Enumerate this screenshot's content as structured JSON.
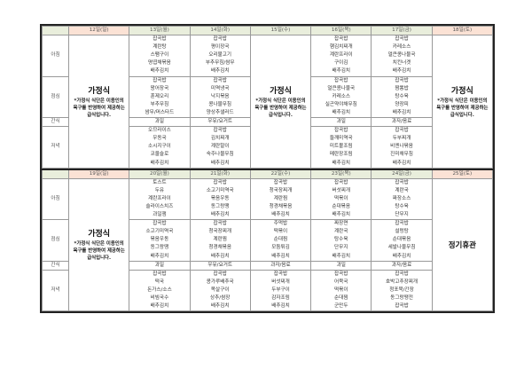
{
  "row_labels": {
    "breakfast": "아침",
    "lunch": "점심",
    "snack": "간식",
    "dinner": "저녁"
  },
  "homestyle": {
    "title": "가정식",
    "note": "*가정식 식단은 이용인의 욕구를 반영하여 제공하는 급식입니다."
  },
  "closed_label": "정기휴관",
  "colors": {
    "weekday_header": "#e9eedc",
    "weekend_header": "#fbe2d5"
  },
  "weeks": [
    {
      "days": [
        {
          "label": "12일(일)",
          "weekend": true,
          "type": "homestyle"
        },
        {
          "label": "13일(월)",
          "type": "menu",
          "breakfast": [
            "잡곡밥",
            "계란탕",
            "스팸구이",
            "명엽채볶음",
            "배추김치"
          ],
          "lunch": [
            "잡곡밥",
            "왕어장국",
            "훈제오리",
            "부추무침",
            "쌈무/머스타드"
          ],
          "snack": "과일",
          "dinner": [
            "오므라이스",
            "우동국",
            "소시지구이",
            "코울슬로",
            "배추김치"
          ]
        },
        {
          "label": "14일(화)",
          "type": "menu",
          "breakfast": [
            "잡곡밥",
            "평이장국",
            "오리불고기",
            "부추무침/쌈무",
            "배추김치"
          ],
          "lunch": [
            "잡곡밥",
            "미역냉국",
            "낙지볶음",
            "콩나물무침",
            "양상추샐러드"
          ],
          "snack": "우유/요거트",
          "dinner": [
            "잡곡밥",
            "김치찌개",
            "계란말이",
            "숙주나물무침",
            "배추김치"
          ]
        },
        {
          "label": "15일(수)",
          "type": "homestyle"
        },
        {
          "label": "16일(목)",
          "type": "menu",
          "breakfast": [
            "잡곡밥",
            "햄김치찌개",
            "계란프라이",
            "구이김",
            "배추김치"
          ],
          "lunch": [
            "잡곡밥",
            "얼큰콩나물국",
            "카레소스",
            "실곤약야채무침",
            "배추김치"
          ],
          "snack": "과일",
          "dinner": [
            "잡곡밥",
            "들깨미역국",
            "미트볼조림",
            "메란장조림",
            "배추김치"
          ]
        },
        {
          "label": "17일(금)",
          "type": "menu",
          "breakfast": [
            "잡곡밥",
            "카레소스",
            "얼큰콩나물국",
            "치킨너겟",
            "배추김치"
          ],
          "lunch": [
            "잡곡밥",
            "짬뽕밥",
            "탕수육",
            "양장피",
            "배추김치"
          ],
          "snack": "과자/음료",
          "dinner": [
            "잡곡밥",
            "두부찌개",
            "비엔나볶음",
            "진미채무침",
            "배추김치"
          ]
        },
        {
          "label": "18일(토)",
          "weekend": true,
          "type": "homestyle"
        }
      ]
    },
    {
      "days": [
        {
          "label": "19일(일)",
          "weekend": true,
          "type": "homestyle"
        },
        {
          "label": "20일(월)",
          "type": "menu",
          "breakfast": [
            "토스트",
            "두유",
            "계란프라이",
            "슬라이스치즈",
            "과일잼"
          ],
          "lunch": [
            "잡곡밥",
            "소고기미역국",
            "볶음우동",
            "동그랑땡",
            "배추김치"
          ],
          "snack": "과일",
          "dinner": [
            "잡곡밥",
            "떡국",
            "돈가스/소스",
            "비빔국수",
            "배추김치"
          ]
        },
        {
          "label": "21일(화)",
          "type": "menu",
          "breakfast": [
            "잡곡밥",
            "소고기미역국",
            "볶음우동",
            "동그랑땡",
            "배추김치"
          ],
          "lunch": [
            "잡곡밥",
            "청국장찌개",
            "계란찜",
            "청경채볶음",
            "배추김치"
          ],
          "snack": "우유/요거트",
          "dinner": [
            "잡곡밥",
            "콩가루배추국",
            "목살구이",
            "상추/쌈장",
            "배추김치"
          ]
        },
        {
          "label": "22일(수)",
          "type": "menu",
          "breakfast": [
            "잡곡밥",
            "청국장찌개",
            "계란찜",
            "청경채볶음",
            "배추김치"
          ],
          "lunch": [
            "주먹밥",
            "떡볶이",
            "순대찜",
            "모둠튀김",
            "배추김치"
          ],
          "snack": "과자/음료",
          "dinner": [
            "잡곡밥",
            "버섯찌개",
            "두부구이",
            "감자조림",
            "배추김치"
          ]
        },
        {
          "label": "23일(목)",
          "type": "menu",
          "breakfast": [
            "잡곡밥",
            "버섯찌개",
            "떡볶이",
            "순대볶음",
            "배추김치"
          ],
          "lunch": [
            "짜장면",
            "계란국",
            "탕수육",
            "단무지",
            "배추김치"
          ],
          "snack": "과일",
          "dinner": [
            "잡곡밥",
            "어묵국",
            "떡볶이",
            "순대찜",
            "군만두"
          ]
        },
        {
          "label": "24일(금)",
          "type": "menu",
          "breakfast": [
            "잡곡밥",
            "계란국",
            "짜장소스",
            "탕수육",
            "단무지"
          ],
          "lunch": [
            "잡곡밥",
            "설렁탕",
            "순대볶음",
            "세발나물무침",
            "배추김치"
          ],
          "snack": "과자/음료",
          "dinner": [
            "잡곡밥",
            "호박고추장찌개",
            "청포묵/간장",
            "동그랑땡전",
            "잡곡밥"
          ]
        },
        {
          "label": "25일(토)",
          "weekend": true,
          "type": "closed"
        }
      ]
    }
  ]
}
